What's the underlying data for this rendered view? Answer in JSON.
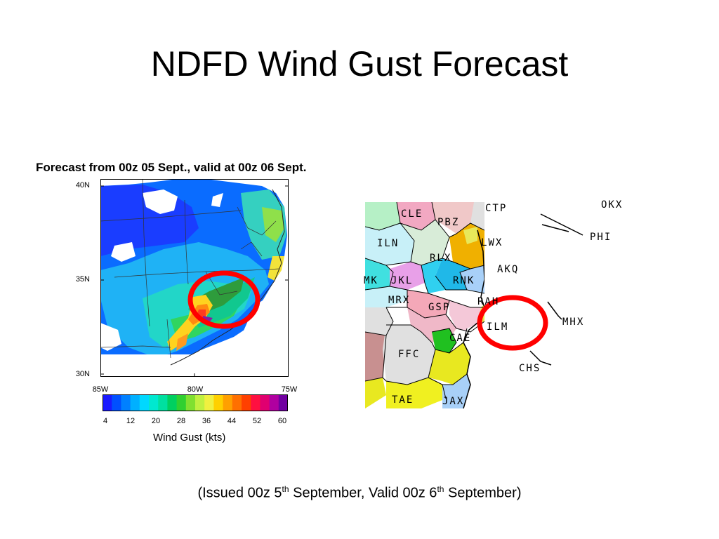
{
  "slide": {
    "title": "NDFD Wind Gust Forecast"
  },
  "gust_map": {
    "heading": "Forecast from 00z 05 Sept., valid at 00z 06 Sept.",
    "lat_labels": [
      "40N",
      "35N",
      "30N"
    ],
    "lon_labels": [
      "85W",
      "80W",
      "75W"
    ],
    "colorbar": {
      "ticks": [
        "4",
        "12",
        "20",
        "28",
        "36",
        "44",
        "52",
        "60"
      ],
      "title": "Wind Gust (kts)",
      "colors": [
        "#1a1aff",
        "#0050ff",
        "#0080ff",
        "#00b0ff",
        "#00d8ff",
        "#00e8d0",
        "#00e0a0",
        "#00d060",
        "#30d030",
        "#80e030",
        "#c0f040",
        "#f0f040",
        "#ffd000",
        "#ffa000",
        "#ff7000",
        "#ff4000",
        "#ff1040",
        "#e00070",
        "#b000a0",
        "#7000a0"
      ]
    },
    "highlight_color": "#ff0000"
  },
  "wfo_map": {
    "labels": [
      "CLE",
      "CTP",
      "PBZ",
      "OKX",
      "PHI",
      "ILN",
      "RLX",
      "LWX",
      "AKQ",
      "MK",
      "JKL",
      "RNK",
      "MRX",
      "GSP",
      "RAH",
      "ILM",
      "MHX",
      "CAE",
      "FFC",
      "CHS",
      "TAE",
      "JAX"
    ]
  },
  "caption": {
    "prefix": "(Issued 00z 5",
    "sup1": "th",
    "middle": " September, Valid 00z 6",
    "sup2": "th",
    "suffix": " September)"
  }
}
